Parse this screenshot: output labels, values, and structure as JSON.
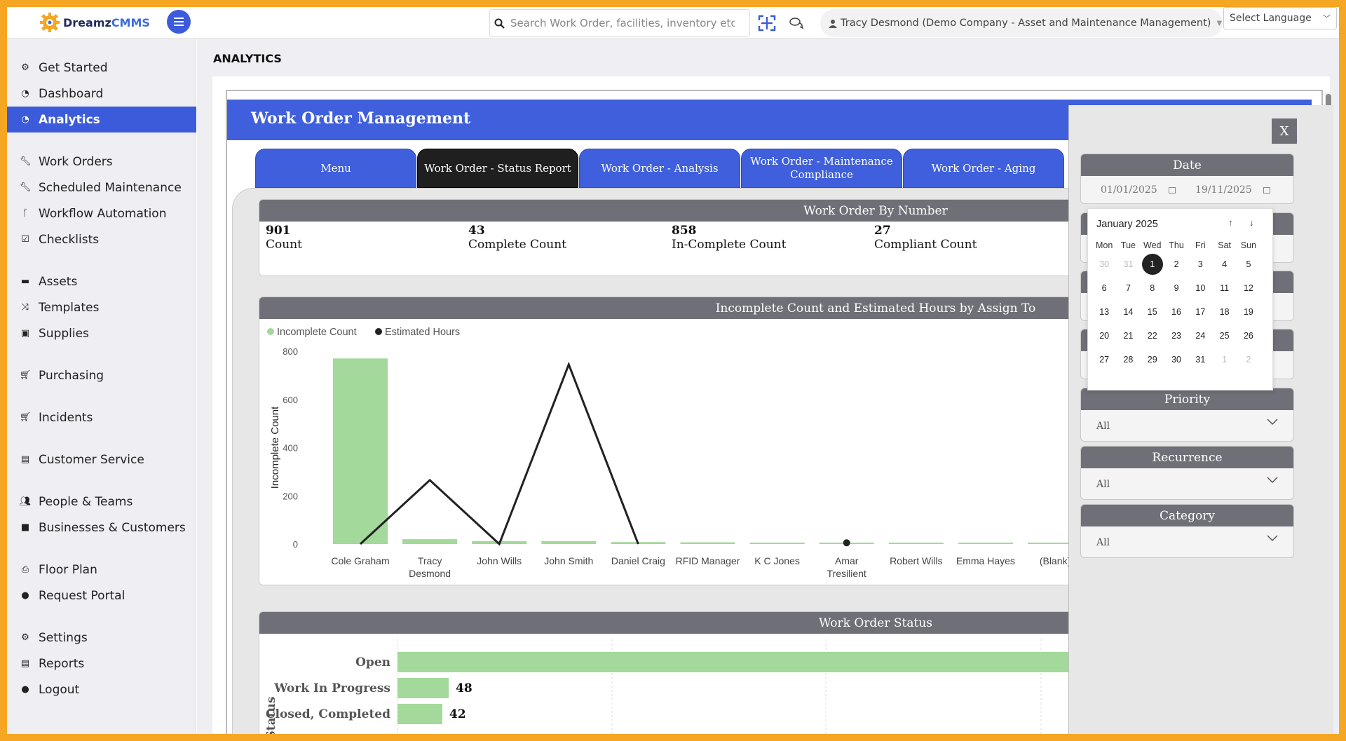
{
  "app": {
    "logo_a": "Dreamz",
    "logo_b": "CMMS",
    "search_placeholder": "Search Work Order, facilities, inventory etc...",
    "user_label": "Tracy Desmond (Demo Company - Asset and Maintenance Management)",
    "language_label": "Select Language"
  },
  "sidebar": {
    "items": [
      {
        "label": "Get Started",
        "icon": "cogs-icon"
      },
      {
        "label": "Dashboard",
        "icon": "dashboard-icon"
      },
      {
        "label": "Analytics",
        "icon": "dashboard-icon",
        "active": true
      },
      {
        "label": "Work Orders",
        "icon": "wrench-icon"
      },
      {
        "label": "Scheduled Maintenance",
        "icon": "wrench-icon"
      },
      {
        "label": "Workflow Automation",
        "icon": "branch-icon"
      },
      {
        "label": "Checklists",
        "icon": "checkbox-icon"
      },
      {
        "label": "Assets",
        "icon": "box-icon"
      },
      {
        "label": "Templates",
        "icon": "shuffle-icon"
      },
      {
        "label": "Supplies",
        "icon": "briefcase-icon"
      },
      {
        "label": "Purchasing",
        "icon": "cart-icon"
      },
      {
        "label": "Incidents",
        "icon": "cart-icon"
      },
      {
        "label": "Customer Service",
        "icon": "file-icon"
      },
      {
        "label": "People & Teams",
        "icon": "users-icon"
      },
      {
        "label": "Businesses & Customers",
        "icon": "video-icon"
      },
      {
        "label": "Floor Plan",
        "icon": "print-icon"
      },
      {
        "label": "Request Portal",
        "icon": "comment-icon"
      },
      {
        "label": "Settings",
        "icon": "gear-icon"
      },
      {
        "label": "Reports",
        "icon": "file-icon"
      },
      {
        "label": "Logout",
        "icon": "user-icon"
      }
    ]
  },
  "page": {
    "title": "ANALYTICS",
    "report_title": "Work Order Management",
    "tabs": [
      {
        "label": "Menu"
      },
      {
        "label": "Work Order - Status Report",
        "active": true
      },
      {
        "label": "Work Order - Analysis"
      },
      {
        "label": "Work Order - Maintenance Compliance"
      },
      {
        "label": "Work Order - Aging"
      }
    ]
  },
  "kpis": {
    "title": "Work Order By Number",
    "items": [
      {
        "value": "901",
        "label": "Count"
      },
      {
        "value": "43",
        "label": "Complete Count"
      },
      {
        "value": "858",
        "label": "In-Complete Count"
      },
      {
        "value": "27",
        "label": "Compliant Count"
      }
    ]
  },
  "filters": {
    "close_label": "X",
    "date_title": "Date",
    "date_from": "01/01/2025",
    "date_to": "19/11/2025",
    "priority_title": "Priority",
    "priority_value": "All",
    "recurrence_title": "Recurrence",
    "recurrence_value": "All",
    "category_title": "Category",
    "category_value": "All"
  },
  "calendar": {
    "month_label": "January 2025",
    "weekdays": [
      "Mon",
      "Tue",
      "Wed",
      "Thu",
      "Fri",
      "Sat",
      "Sun"
    ],
    "weeks": [
      [
        "30",
        "31",
        "1",
        "2",
        "3",
        "4",
        "5"
      ],
      [
        "6",
        "7",
        "8",
        "9",
        "10",
        "11",
        "12"
      ],
      [
        "13",
        "14",
        "15",
        "16",
        "17",
        "18",
        "19"
      ],
      [
        "20",
        "21",
        "22",
        "23",
        "24",
        "25",
        "26"
      ],
      [
        "27",
        "28",
        "29",
        "30",
        "31",
        "1",
        "2"
      ]
    ],
    "selected": "1"
  },
  "colors": {
    "accent": "#3f5fdc",
    "bar": "#a3d99a",
    "line": "#222222",
    "header_gray": "#6f7077",
    "frame": "#f5a623"
  },
  "chart_data": [
    {
      "type": "bar",
      "title": "Incomplete Count and Estimated Hours by Assign To",
      "ylabel": "Incomplete Count",
      "ylim": [
        0,
        800
      ],
      "yticks": [
        0,
        200,
        400,
        600,
        800
      ],
      "categories": [
        "Cole Graham",
        "Tracy Desmond",
        "John Wills",
        "John Smith",
        "Daniel Craig",
        "RFID Manager",
        "K C Jones",
        "Amar Tresilient",
        "Robert Wills",
        "Emma Hayes",
        "(Blank)"
      ],
      "series": [
        {
          "name": "Incomplete Count",
          "type": "bar",
          "values": [
            770,
            20,
            12,
            12,
            8,
            7,
            3,
            3,
            2,
            2,
            2
          ]
        },
        {
          "name": "Estimated Hours",
          "type": "line",
          "values": [
            0,
            265,
            0,
            745,
            0,
            null,
            null,
            5,
            null,
            null,
            null
          ]
        }
      ]
    },
    {
      "type": "bar",
      "title": "Work Order Status",
      "ylabel": "Status",
      "categories": [
        "Open",
        "Work In Progress",
        "Closed, Completed"
      ],
      "values": [
        null,
        48,
        42
      ],
      "value_labels": [
        "",
        "48",
        "42"
      ]
    }
  ]
}
